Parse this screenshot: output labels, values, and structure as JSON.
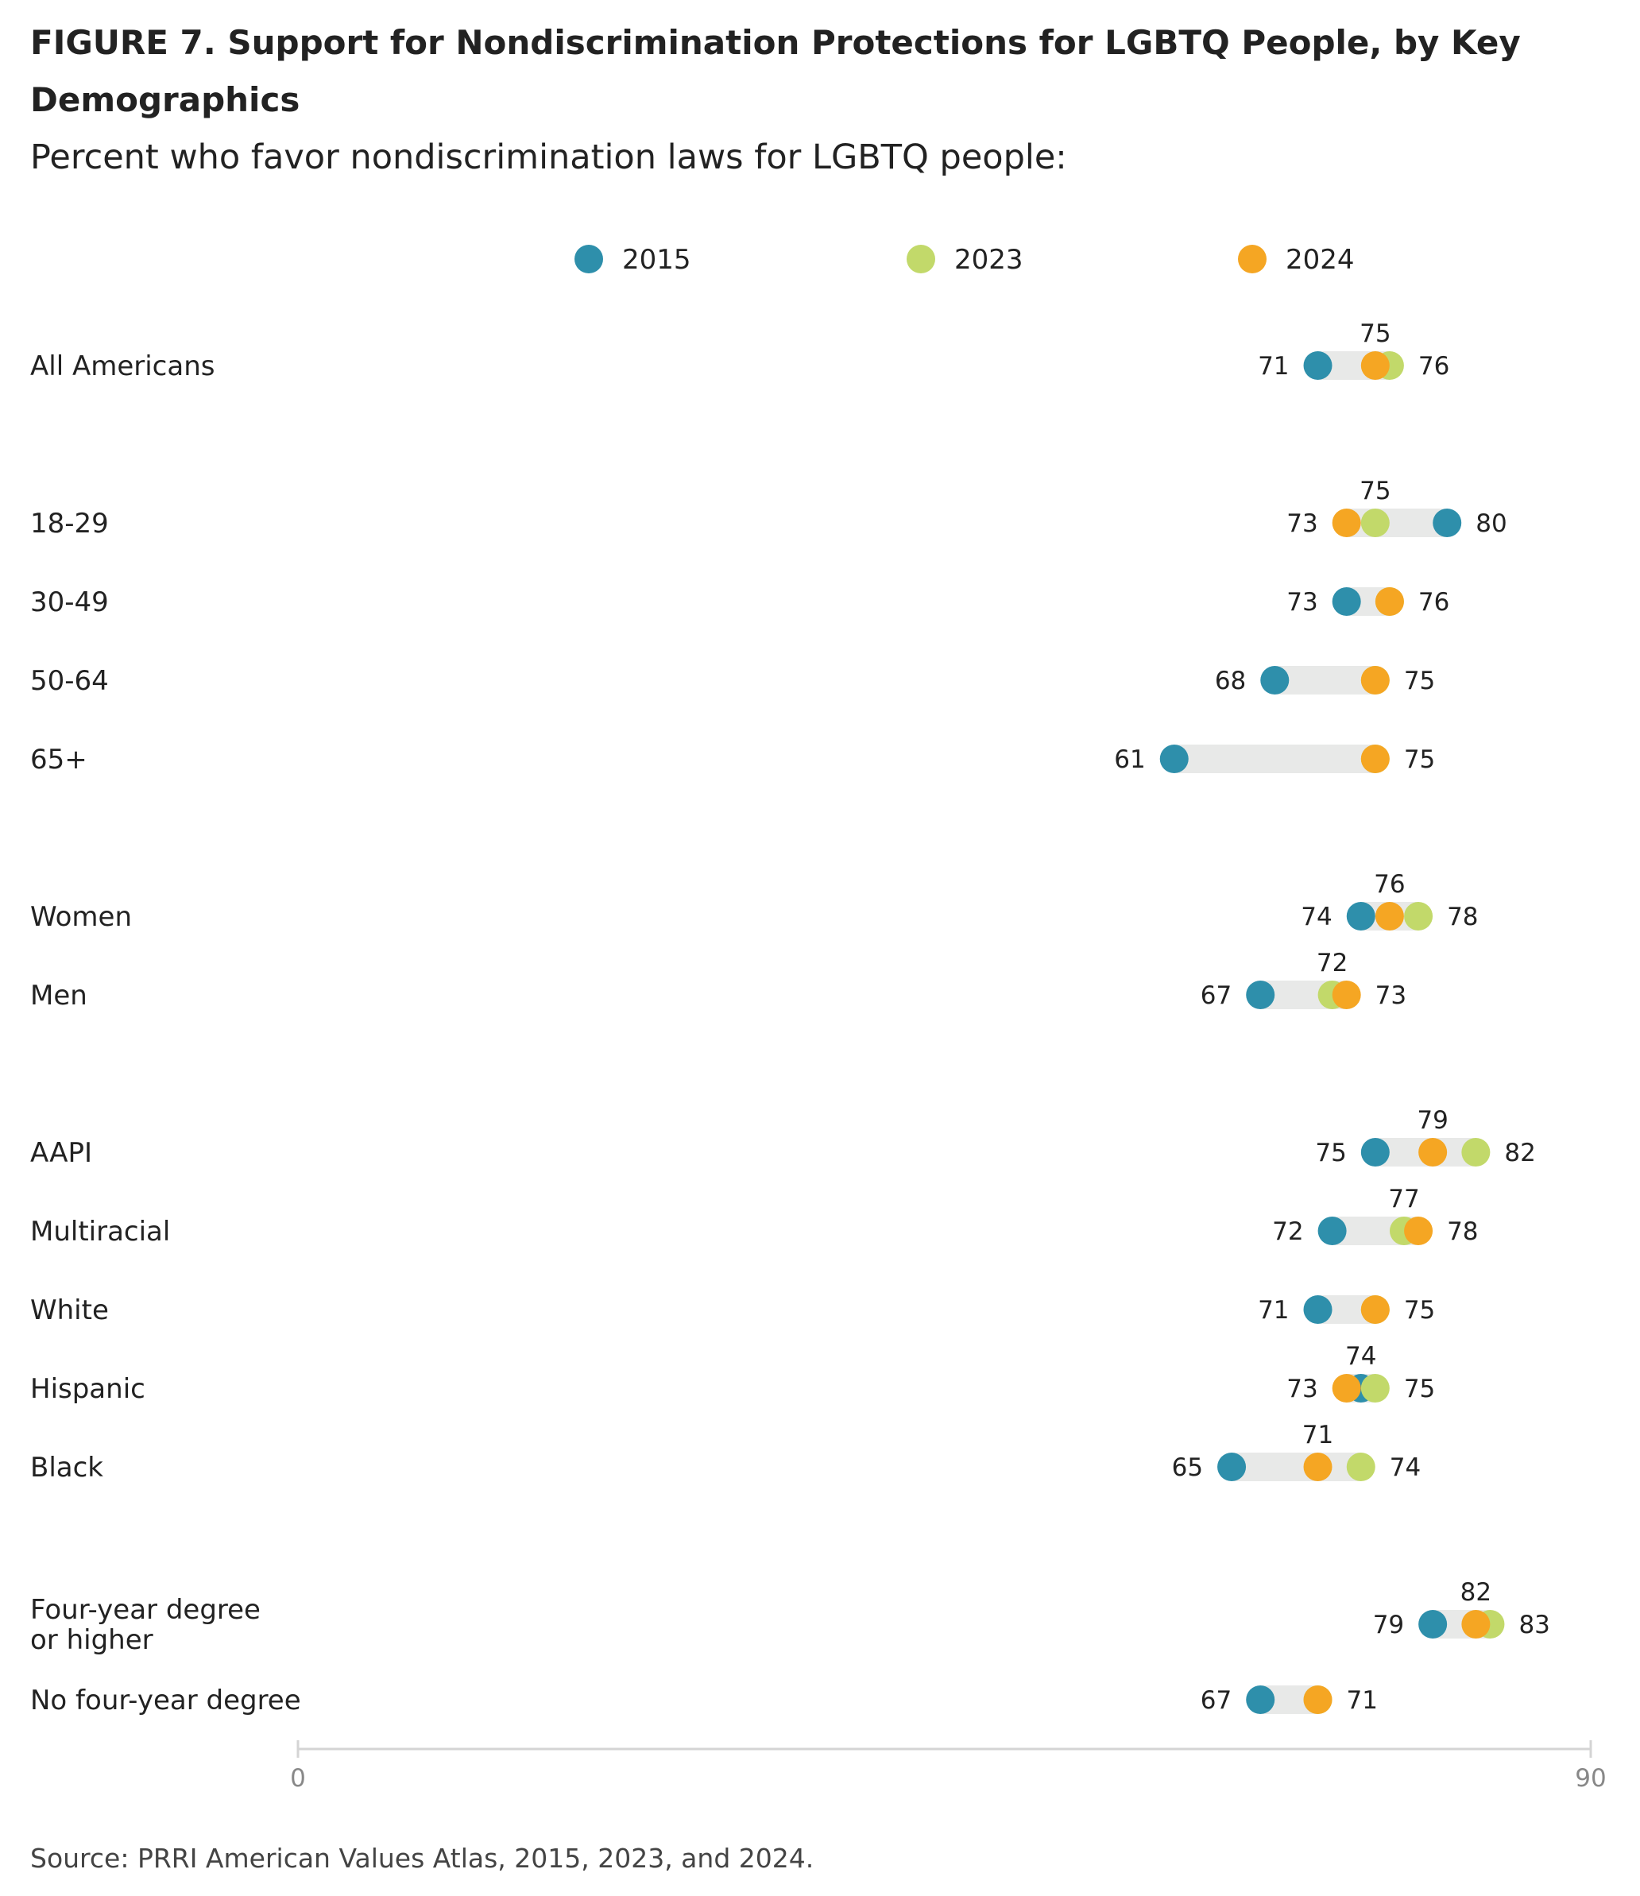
{
  "chart_data": {
    "type": "dot-range",
    "title": "FIGURE 7.  Support for Nondiscrimination Protections for LGBTQ People, by Key Demographics",
    "title_lines": [
      "FIGURE 7.  Support for Nondiscrimination Protections for LGBTQ People, by Key",
      "Demographics"
    ],
    "subtitle": "Percent who favor nondiscrimination laws for LGBTQ people:",
    "source": "Source: PRRI American Values Atlas, 2015, 2023, and 2024.",
    "xlim": [
      0,
      90
    ],
    "x_ticks": [
      0,
      90
    ],
    "legend_position": "top",
    "series": [
      {
        "name": "2015",
        "color": "#2e8fab"
      },
      {
        "name": "2023",
        "color": "#c2d96a"
      },
      {
        "name": "2024",
        "color": "#f5a623"
      }
    ],
    "categories": [
      {
        "label": [
          "All Americans"
        ],
        "group": 0,
        "values": {
          "2015": 71,
          "2023": 76,
          "2024": 75
        }
      },
      {
        "label": [
          "18-29"
        ],
        "group": 1,
        "values": {
          "2015": 80,
          "2023": 75,
          "2024": 73
        }
      },
      {
        "label": [
          "30-49"
        ],
        "group": 1,
        "values": {
          "2015": 73,
          "2023": 76,
          "2024": 76
        }
      },
      {
        "label": [
          "50-64"
        ],
        "group": 1,
        "values": {
          "2015": 68,
          "2023": 75,
          "2024": 75
        }
      },
      {
        "label": [
          "65+"
        ],
        "group": 1,
        "values": {
          "2015": 61,
          "2023": 75,
          "2024": 75
        }
      },
      {
        "label": [
          "Women"
        ],
        "group": 2,
        "values": {
          "2015": 74,
          "2023": 78,
          "2024": 76
        }
      },
      {
        "label": [
          "Men"
        ],
        "group": 2,
        "values": {
          "2015": 67,
          "2023": 72,
          "2024": 73
        }
      },
      {
        "label": [
          "AAPI"
        ],
        "group": 3,
        "values": {
          "2015": 75,
          "2023": 82,
          "2024": 79
        }
      },
      {
        "label": [
          "Multiracial"
        ],
        "group": 3,
        "values": {
          "2015": 72,
          "2023": 77,
          "2024": 78
        }
      },
      {
        "label": [
          "White"
        ],
        "group": 3,
        "values": {
          "2015": 71,
          "2023": 75,
          "2024": 75
        }
      },
      {
        "label": [
          "Hispanic"
        ],
        "group": 3,
        "values": {
          "2015": 74,
          "2023": 75,
          "2024": 73
        }
      },
      {
        "label": [
          "Black"
        ],
        "group": 3,
        "values": {
          "2015": 65,
          "2023": 74,
          "2024": 71
        }
      },
      {
        "label": [
          "Four-year degree",
          "or higher"
        ],
        "group": 4,
        "values": {
          "2015": 79,
          "2023": 83,
          "2024": 82
        }
      },
      {
        "label": [
          "No four-year degree"
        ],
        "group": 4,
        "values": {
          "2015": 67,
          "2023": 71,
          "2024": 71
        }
      }
    ]
  }
}
